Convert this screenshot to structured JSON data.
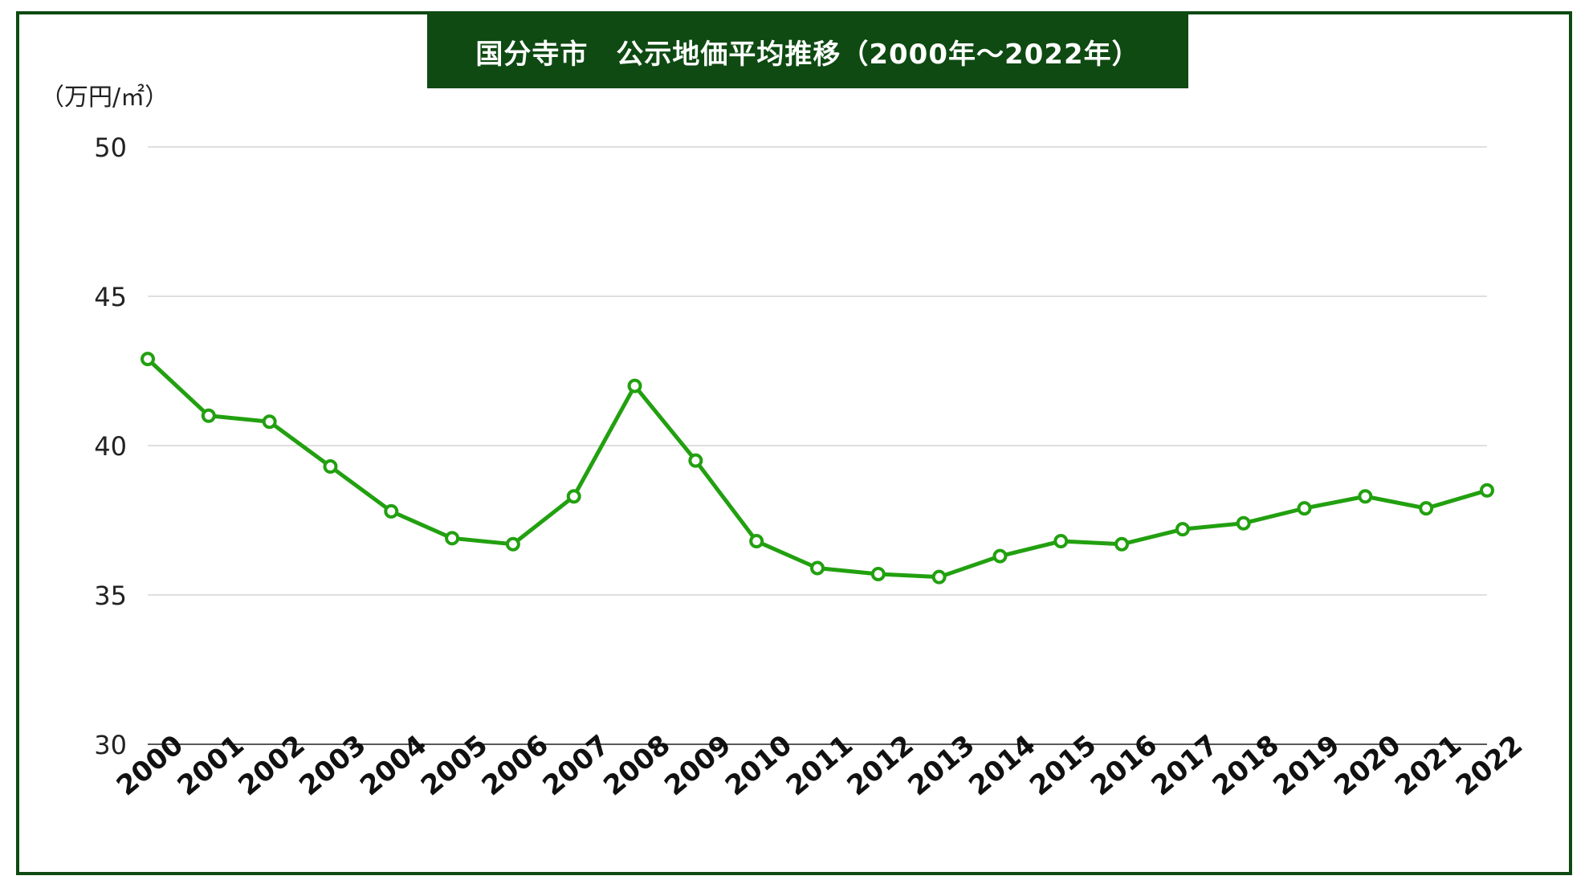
{
  "title": "国分寺市　公示地価平均推移（2000年〜2022年）",
  "unit": "（万円/㎡）",
  "colors": {
    "frame": "#0e4a12",
    "title_bg": "#0e4a12",
    "line": "#22a010",
    "grid": "#cccccc"
  },
  "chart_data": {
    "type": "line",
    "title": "国分寺市　公示地価平均推移（2000年〜2022年）",
    "ylabel": "（万円/㎡）",
    "xlabel": "",
    "ylim": [
      30,
      50
    ],
    "yticks": [
      30,
      35,
      40,
      45,
      50
    ],
    "grid": true,
    "categories": [
      "2000",
      "2001",
      "2002",
      "2003",
      "2004",
      "2005",
      "2006",
      "2007",
      "2008",
      "2009",
      "2010",
      "2011",
      "2012",
      "2013",
      "2014",
      "2015",
      "2016",
      "2017",
      "2018",
      "2019",
      "2020",
      "2021",
      "2022"
    ],
    "series": [
      {
        "values": [
          42.9,
          41.0,
          40.8,
          39.3,
          37.8,
          36.9,
          36.7,
          38.3,
          42.0,
          39.5,
          36.8,
          35.9,
          35.7,
          35.6,
          36.3,
          36.8,
          36.7,
          37.2,
          37.4,
          37.9,
          38.3,
          37.9,
          38.5
        ]
      }
    ]
  }
}
